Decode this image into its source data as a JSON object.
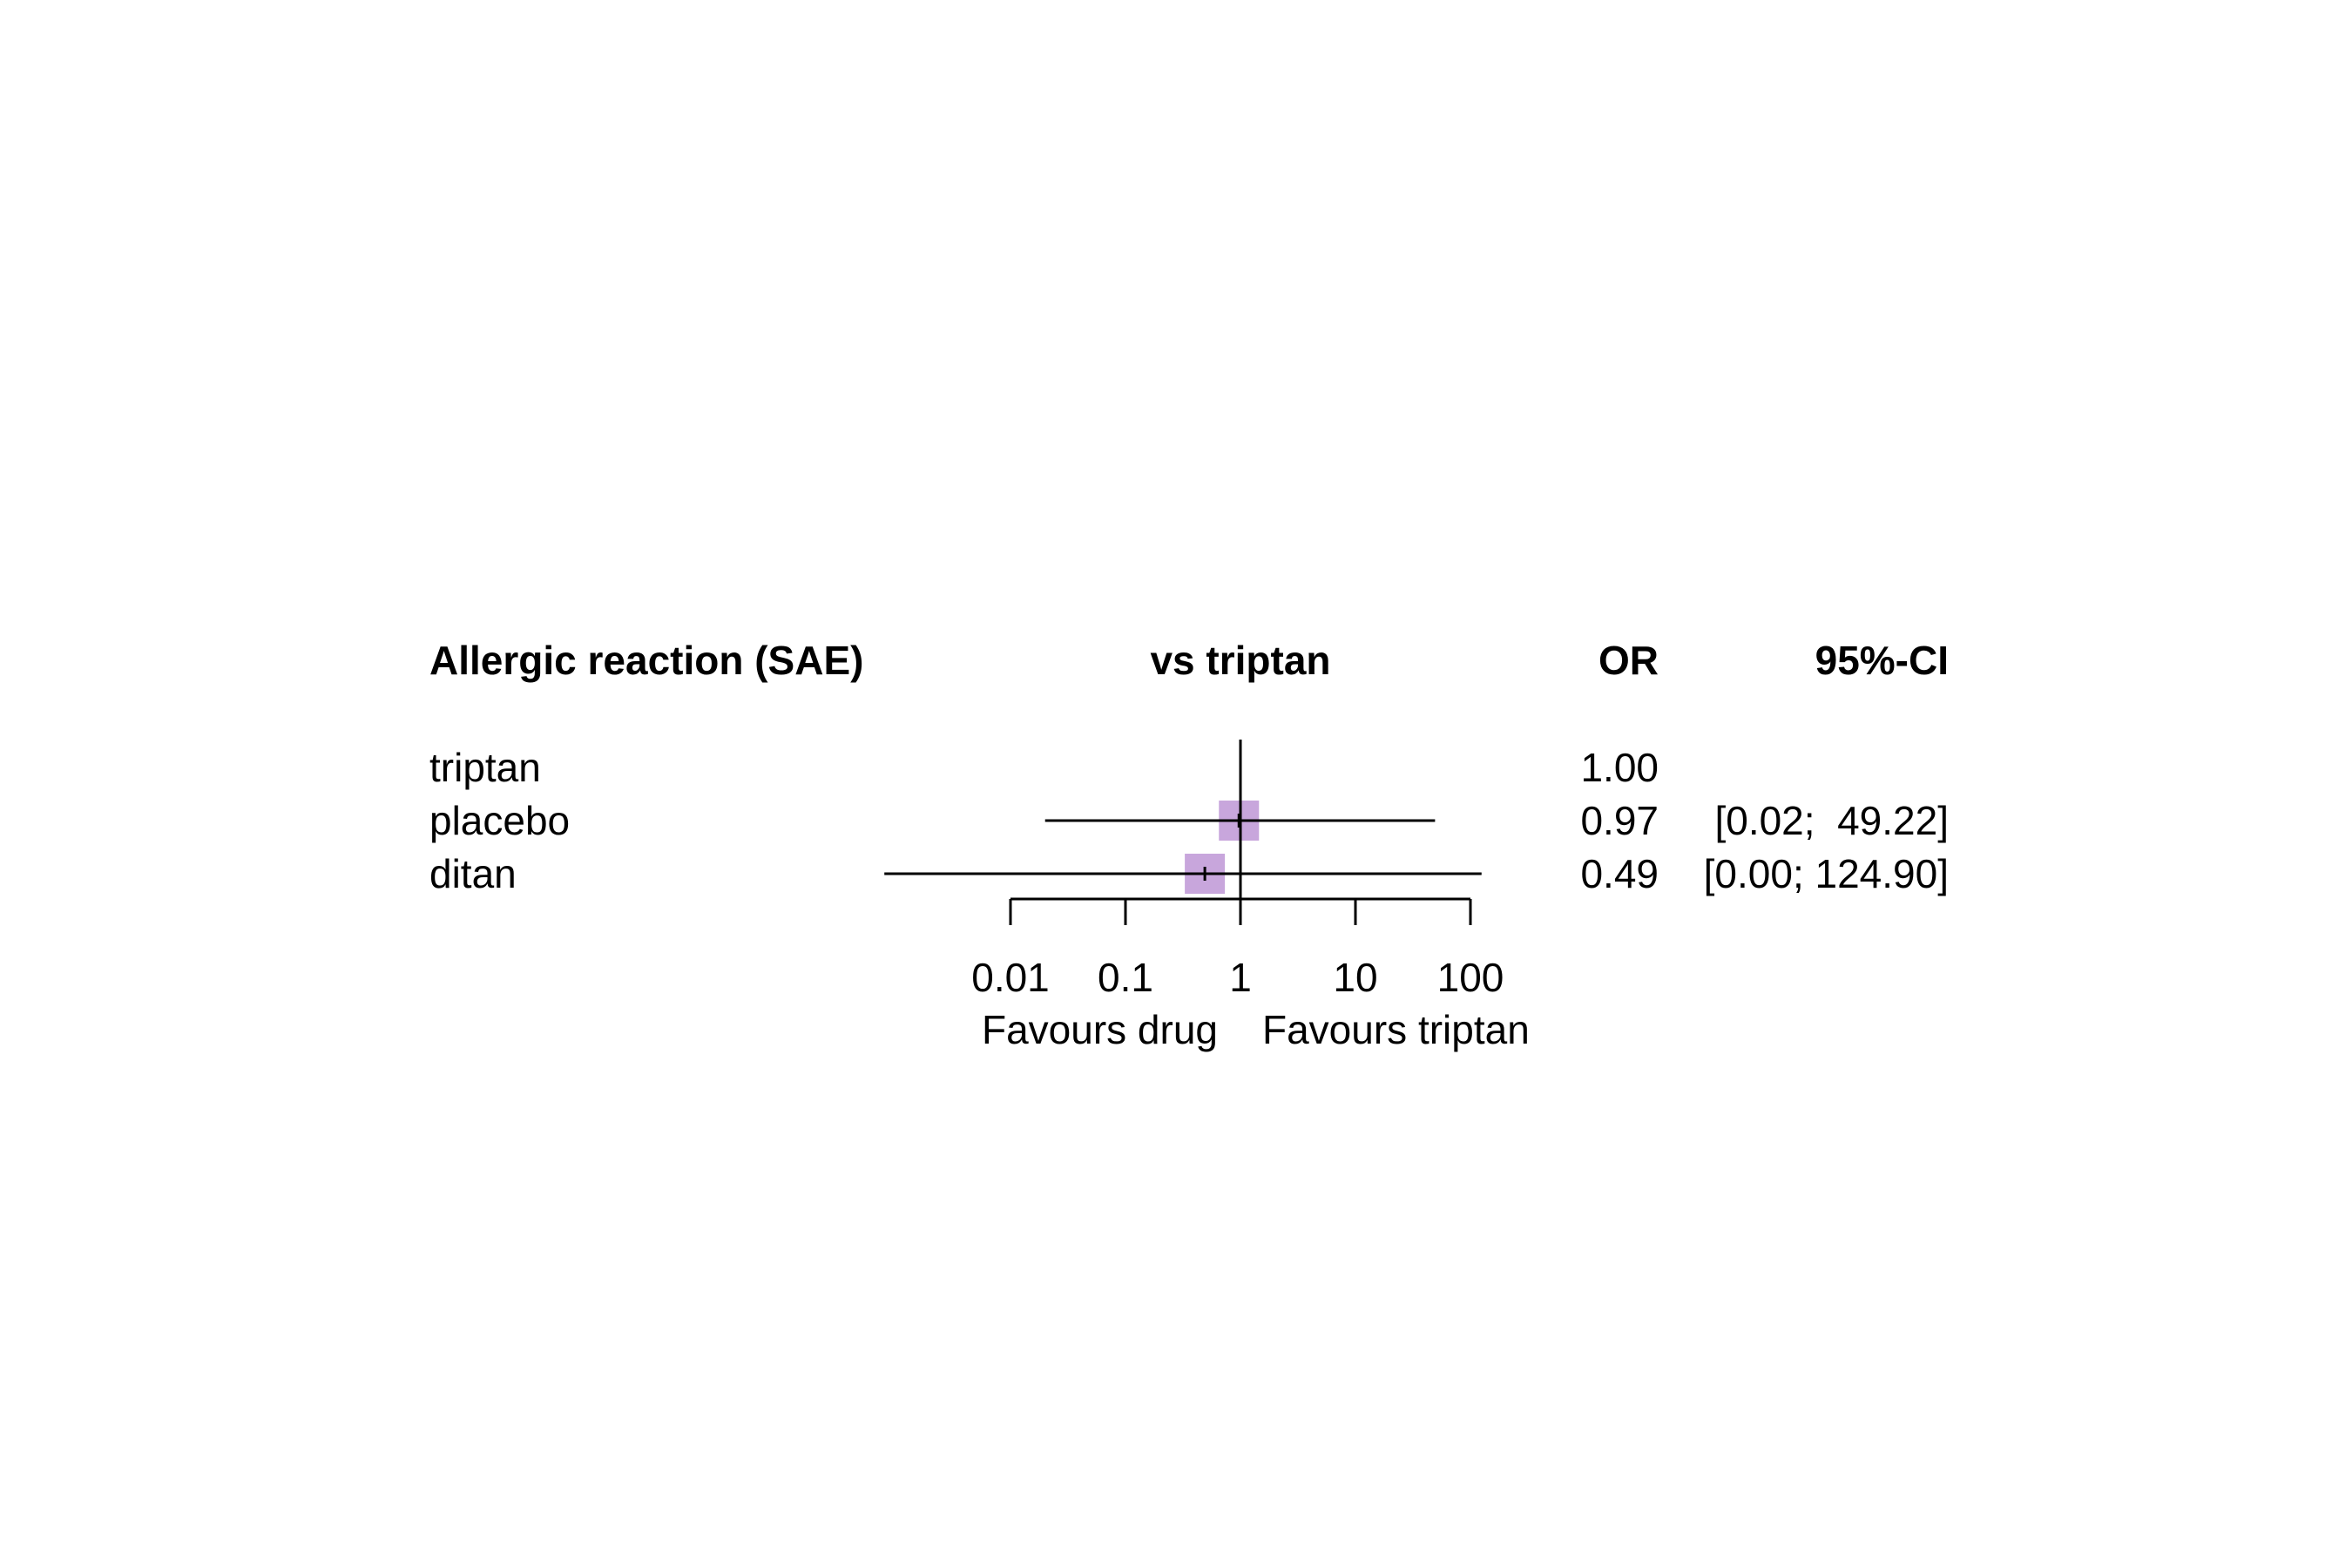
{
  "chart_data": {
    "type": "forest",
    "headers": {
      "outcome": "Allergic reaction (SAE)",
      "comparison": "vs triptan",
      "estimate": "OR",
      "ci": "95%-CI"
    },
    "rows": [
      {
        "label": "triptan",
        "or": 1.0,
        "lower": null,
        "upper": null,
        "or_text": "1.00",
        "ci_text": ""
      },
      {
        "label": "placebo",
        "or": 0.97,
        "lower": 0.02,
        "upper": 49.22,
        "or_text": "0.97",
        "ci_text": "[0.02;  49.22]"
      },
      {
        "label": "ditan",
        "or": 0.49,
        "lower": 0.0,
        "upper": 124.9,
        "or_text": "0.49",
        "ci_text": "[0.00; 124.90]"
      }
    ],
    "x_axis": {
      "scale": "log",
      "ticks": [
        0.01,
        0.1,
        1,
        10,
        100
      ],
      "tick_labels": [
        "0.01",
        "0.1",
        "1",
        "10",
        "100"
      ],
      "reference_line": 1
    },
    "favours_left": "Favours drug",
    "favours_right": "Favours triptan",
    "marker_color": "#c8a6dc",
    "line_color": "#000000"
  }
}
